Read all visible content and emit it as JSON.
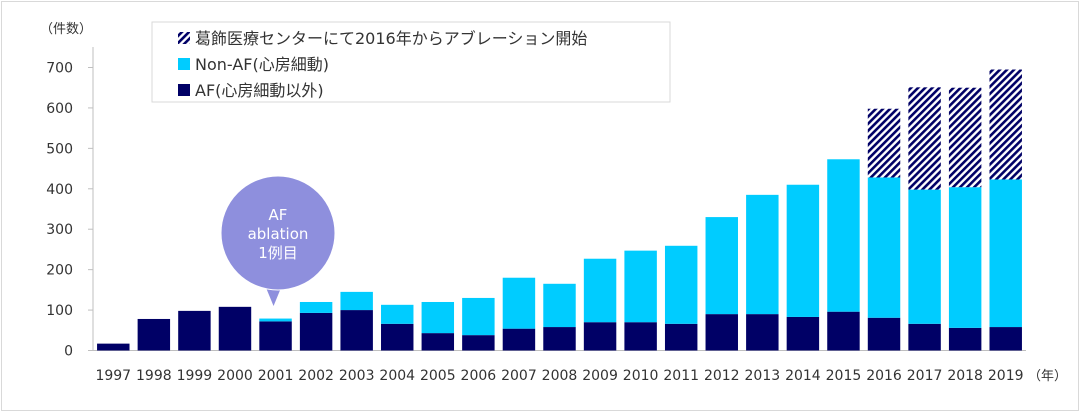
{
  "chart_data": {
    "type": "bar",
    "stacked": true,
    "y_unit_label": "（件数）",
    "x_unit_label": "（年）",
    "ylim": [
      0,
      700
    ],
    "yticks": [
      0,
      100,
      200,
      300,
      400,
      500,
      600,
      700
    ],
    "grid": false,
    "legend_position": "top-left",
    "categories": [
      "1997",
      "1998",
      "1999",
      "2000",
      "2001",
      "2002",
      "2003",
      "2004",
      "2005",
      "2006",
      "2007",
      "2008",
      "2009",
      "2010",
      "2011",
      "2012",
      "2013",
      "2014",
      "2015",
      "2016",
      "2017",
      "2018",
      "2019"
    ],
    "series": [
      {
        "name": "AF(心房細動以外)",
        "color": "#000066",
        "pattern": "solid",
        "values": [
          17,
          78,
          98,
          108,
          72,
          93,
          100,
          66,
          43,
          38,
          54,
          58,
          70,
          70,
          66,
          90,
          90,
          83,
          96,
          81,
          66,
          56,
          58
        ]
      },
      {
        "name": "Non-AF(心房細動)",
        "color": "#00ccff",
        "pattern": "solid",
        "values": [
          0,
          0,
          0,
          0,
          7,
          27,
          45,
          47,
          77,
          92,
          126,
          107,
          157,
          177,
          193,
          240,
          295,
          327,
          377,
          347,
          332,
          348,
          365
        ]
      },
      {
        "name": "葛飾医療センターにて2016年からアブレーション開始",
        "color": "#000066",
        "pattern": "hatch",
        "values": [
          0,
          0,
          0,
          0,
          0,
          0,
          0,
          0,
          0,
          0,
          0,
          0,
          0,
          0,
          0,
          0,
          0,
          0,
          0,
          170,
          253,
          246,
          272
        ]
      }
    ],
    "legend_order": [
      2,
      1,
      0
    ],
    "annotation": {
      "lines": [
        "AF",
        "ablation",
        "1例目"
      ],
      "category": "2001",
      "color": "#8e8fdd"
    }
  }
}
